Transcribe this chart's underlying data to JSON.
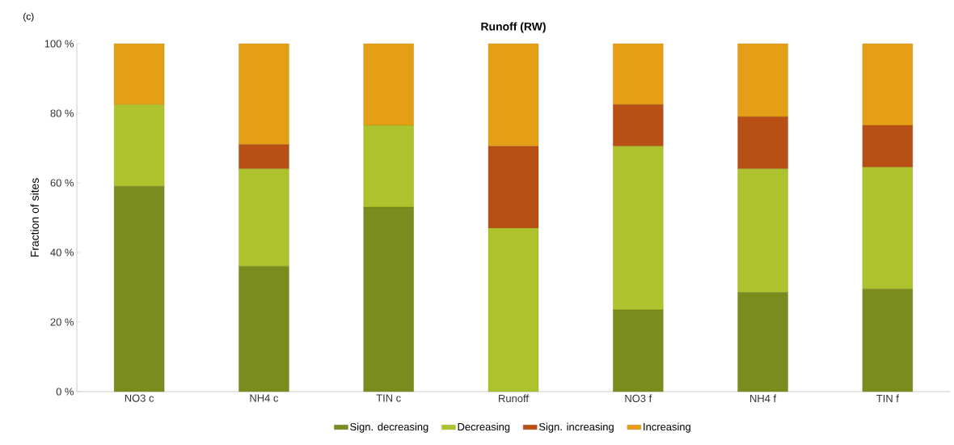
{
  "chart_data": {
    "type": "bar",
    "title": "Runoff (RW)",
    "ylabel": "Fraction of sites",
    "annotations": [
      "(c)"
    ],
    "categories": [
      "NO3 c",
      "NH4 c",
      "TIN c",
      "Runoff",
      "NO3 f",
      "NH4 f",
      "TIN f"
    ],
    "stacked": true,
    "ylim": [
      0,
      100
    ],
    "yticks": [
      {
        "value": 0,
        "label": "0 %"
      },
      {
        "value": 20,
        "label": "20 %"
      },
      {
        "value": 40,
        "label": "40 %"
      },
      {
        "value": 60,
        "label": "60 %"
      },
      {
        "value": 80,
        "label": "80 %"
      },
      {
        "value": 100,
        "label": "100 %"
      }
    ],
    "legend": "bottom",
    "series": [
      {
        "name": "Sign. decreasing",
        "color": "#7a8c1e",
        "values": [
          59,
          36,
          53,
          0,
          23.5,
          28.5,
          29.5
        ]
      },
      {
        "name": "Decreasing",
        "color": "#adc22c",
        "values": [
          23.5,
          28,
          23.5,
          47,
          47,
          35.5,
          35
        ]
      },
      {
        "name": "Sign. increasing",
        "color": "#b85016",
        "values": [
          0,
          7,
          0,
          23.5,
          12,
          15,
          12
        ]
      },
      {
        "name": "Increasing",
        "color": "#e49f16",
        "values": [
          17.5,
          29,
          23.5,
          29.5,
          17.5,
          21,
          23.5
        ]
      }
    ]
  }
}
